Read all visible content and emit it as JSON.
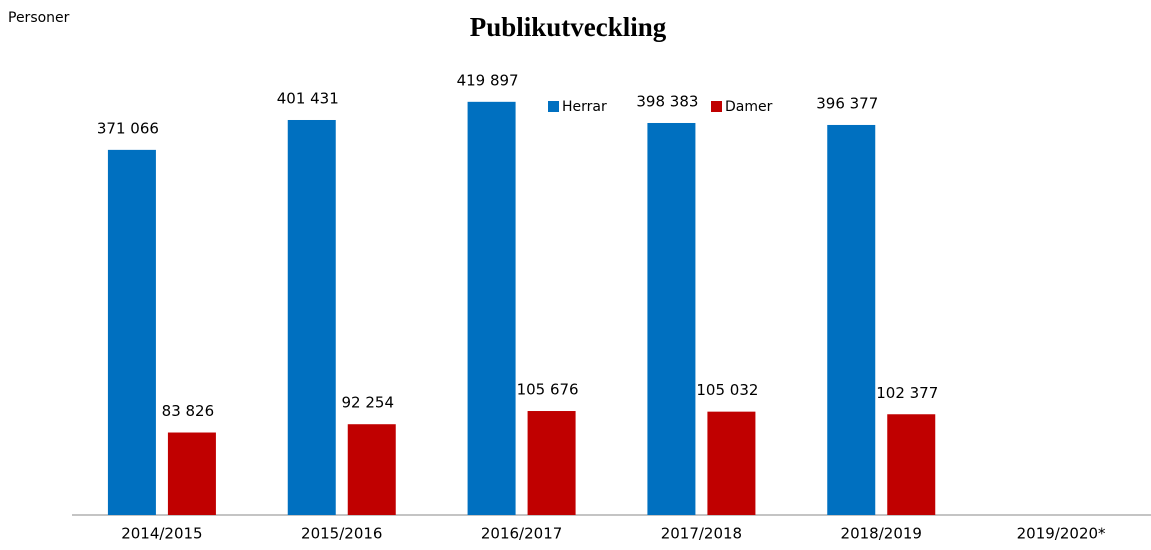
{
  "chart_data": {
    "type": "bar",
    "title": "Publikutveckling",
    "y_label": "Personer",
    "categories": [
      "2014/2015",
      "2015/2016",
      "2016/2017",
      "2017/2018",
      "2018/2019",
      "2019/2020*"
    ],
    "series": [
      {
        "name": "Herrar",
        "color": "#0070c0",
        "values": [
          371066,
          401431,
          419897,
          398383,
          396377,
          null
        ],
        "value_labels": [
          "371 066",
          "401 431",
          "419 897",
          "398 383",
          "396 377",
          null
        ]
      },
      {
        "name": "Damer",
        "color": "#c00000",
        "values": [
          83826,
          92254,
          105676,
          105032,
          102377,
          null
        ],
        "value_labels": [
          "83 826",
          "92 254",
          "105 676",
          "105 032",
          "102 377",
          null
        ]
      }
    ],
    "ylim": [
      0,
      500000
    ]
  }
}
